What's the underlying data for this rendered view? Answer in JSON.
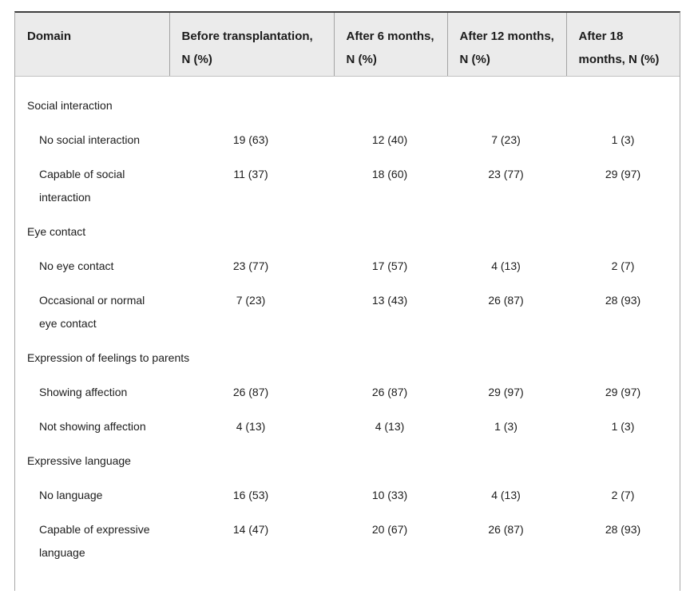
{
  "table": {
    "columns": [
      "Domain",
      "Before transplantation, N (%)",
      "After 6 months, N (%)",
      "After 12 months, N (%)",
      "After 18 months, N (%)"
    ],
    "sections": [
      {
        "domain": "Social interaction",
        "rows": [
          {
            "label": "No social interaction",
            "values": [
              "19 (63)",
              "12 (40)",
              "7 (23)",
              "1 (3)"
            ]
          },
          {
            "label": "Capable of social interaction",
            "values": [
              "11 (37)",
              "18 (60)",
              "23 (77)",
              "29 (97)"
            ]
          }
        ]
      },
      {
        "domain": "Eye contact",
        "rows": [
          {
            "label": "No eye contact",
            "values": [
              "23 (77)",
              "17 (57)",
              "4 (13)",
              "2 (7)"
            ]
          },
          {
            "label": "Occasional or normal eye contact",
            "values": [
              "7 (23)",
              "13 (43)",
              "26 (87)",
              "28 (93)"
            ]
          }
        ]
      },
      {
        "domain": "Expression of feelings to parents",
        "rows": [
          {
            "label": "Showing affection",
            "values": [
              "26 (87)",
              "26 (87)",
              "29 (97)",
              "29 (97)"
            ]
          },
          {
            "label": "Not showing affection",
            "values": [
              "4 (13)",
              "4 (13)",
              "1 (3)",
              "1 (3)"
            ]
          }
        ]
      },
      {
        "domain": "Expressive language",
        "rows": [
          {
            "label": "No language",
            "values": [
              "16 (53)",
              "10 (33)",
              "4 (13)",
              "2 (7)"
            ]
          },
          {
            "label": "Capable of expressive language",
            "values": [
              "14 (47)",
              "20 (67)",
              "26 (87)",
              "28 (93)"
            ]
          }
        ]
      }
    ],
    "colors": {
      "header_bg": "#ebebeb",
      "top_border": "#3e3e3e",
      "cell_border": "#a3a3a3",
      "outer_border": "#a8a8a8",
      "text": "#1c1c1c"
    }
  }
}
